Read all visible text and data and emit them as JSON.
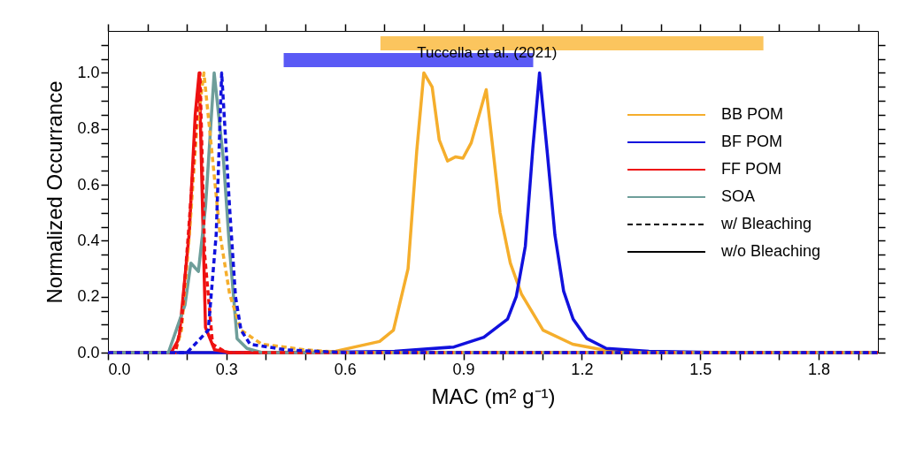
{
  "chart_data": {
    "type": "line",
    "xlabel": "MAC (m² g⁻¹)",
    "ylabel": "Normalized Occurrance",
    "xlim": [
      0,
      1.95
    ],
    "ylim": [
      0,
      1.15
    ],
    "xticks": [
      {
        "value": 0,
        "label": "0.0"
      },
      {
        "value": 0.1,
        "label": null
      },
      {
        "value": 0.2,
        "label": null
      },
      {
        "value": 0.3,
        "label": "0.3"
      },
      {
        "value": 0.4,
        "label": null
      },
      {
        "value": 0.5,
        "label": null
      },
      {
        "value": 0.6,
        "label": "0.6"
      },
      {
        "value": 0.7,
        "label": null
      },
      {
        "value": 0.8,
        "label": null
      },
      {
        "value": 0.9,
        "label": "0.9"
      },
      {
        "value": 1.0,
        "label": null
      },
      {
        "value": 1.1,
        "label": null
      },
      {
        "value": 1.2,
        "label": "1.2"
      },
      {
        "value": 1.3,
        "label": null
      },
      {
        "value": 1.4,
        "label": null
      },
      {
        "value": 1.5,
        "label": "1.5"
      },
      {
        "value": 1.6,
        "label": null
      },
      {
        "value": 1.7,
        "label": null
      },
      {
        "value": 1.8,
        "label": "1.8"
      },
      {
        "value": 1.9,
        "label": null
      }
    ],
    "yticks": [
      {
        "value": 0,
        "label": "0.0"
      },
      {
        "value": 0.05,
        "label": null
      },
      {
        "value": 0.1,
        "label": null
      },
      {
        "value": 0.15,
        "label": null
      },
      {
        "value": 0.2,
        "label": "0.2"
      },
      {
        "value": 0.25,
        "label": null
      },
      {
        "value": 0.3,
        "label": null
      },
      {
        "value": 0.35,
        "label": null
      },
      {
        "value": 0.4,
        "label": "0.4"
      },
      {
        "value": 0.45,
        "label": null
      },
      {
        "value": 0.5,
        "label": null
      },
      {
        "value": 0.55,
        "label": null
      },
      {
        "value": 0.6,
        "label": "0.6"
      },
      {
        "value": 0.65,
        "label": null
      },
      {
        "value": 0.7,
        "label": null
      },
      {
        "value": 0.75,
        "label": null
      },
      {
        "value": 0.8,
        "label": "0.8"
      },
      {
        "value": 0.85,
        "label": null
      },
      {
        "value": 0.9,
        "label": null
      },
      {
        "value": 0.95,
        "label": null
      },
      {
        "value": 1.0,
        "label": "1.0"
      },
      {
        "value": 1.05,
        "label": null
      },
      {
        "value": 1.1,
        "label": null
      }
    ],
    "grid": false,
    "legend": "right",
    "series": [
      {
        "name": "BB POM",
        "color": "#f5ae2c",
        "line_style": "solid",
        "x": [
          0,
          0.4,
          0.577,
          0.688,
          0.723,
          0.76,
          0.782,
          0.8,
          0.821,
          0.839,
          0.86,
          0.88,
          0.899,
          0.92,
          0.958,
          0.993,
          1.019,
          1.047,
          1.102,
          1.177,
          1.252,
          1.37,
          1.95
        ],
        "values": [
          0,
          0,
          0.005,
          0.04,
          0.08,
          0.3,
          0.72,
          1.0,
          0.95,
          0.76,
          0.685,
          0.7,
          0.695,
          0.75,
          0.94,
          0.5,
          0.32,
          0.21,
          0.08,
          0.03,
          0.01,
          0,
          0
        ]
      },
      {
        "name": "BF POM",
        "color": "#1111dd",
        "line_style": "solid",
        "x": [
          0,
          0.5,
          0.726,
          0.876,
          0.952,
          1.012,
          1.034,
          1.057,
          1.076,
          1.093,
          1.113,
          1.132,
          1.154,
          1.178,
          1.213,
          1.262,
          1.37,
          1.56,
          1.95
        ],
        "values": [
          0,
          0,
          0.005,
          0.02,
          0.055,
          0.12,
          0.2,
          0.38,
          0.73,
          1.0,
          0.71,
          0.42,
          0.22,
          0.12,
          0.05,
          0.015,
          0.005,
          0,
          0
        ]
      },
      {
        "name": "FF POM",
        "color": "#ee1111",
        "line_style": "solid",
        "x": [
          0,
          0.16,
          0.18,
          0.206,
          0.221,
          0.231,
          0.247,
          0.27,
          0.31,
          1.95
        ],
        "values": [
          0,
          0,
          0.05,
          0.43,
          0.85,
          1.0,
          0.09,
          0.01,
          0,
          0
        ]
      },
      {
        "name": "SOA",
        "color": "#6e9e9a",
        "line_style": "solid",
        "x": [
          0,
          0.153,
          0.195,
          0.21,
          0.229,
          0.247,
          0.269,
          0.293,
          0.308,
          0.327,
          0.352,
          0.39,
          1.95
        ],
        "values": [
          0,
          0,
          0.17,
          0.32,
          0.29,
          0.52,
          1.0,
          0.68,
          0.37,
          0.05,
          0.015,
          0,
          0
        ]
      },
      {
        "color": "#f5ae2c",
        "line_style": "dashed",
        "x": [
          0,
          0.17,
          0.186,
          0.205,
          0.225,
          0.243,
          0.263,
          0.284,
          0.308,
          0.337,
          0.39,
          0.5,
          0.6,
          1.95
        ],
        "values": [
          0,
          0,
          0.08,
          0.4,
          0.8,
          1.0,
          0.72,
          0.42,
          0.21,
          0.08,
          0.03,
          0.01,
          0,
          0
        ]
      },
      {
        "color": "#ee1111",
        "line_style": "dashed",
        "x": [
          0,
          0.17,
          0.186,
          0.205,
          0.225,
          0.233,
          0.245,
          0.265,
          0.3,
          1.95
        ],
        "values": [
          0,
          0,
          0.1,
          0.45,
          0.85,
          1.0,
          0.35,
          0.03,
          0,
          0
        ]
      },
      {
        "color": "#1111dd",
        "line_style": "dashed",
        "x": [
          0,
          0.2,
          0.254,
          0.274,
          0.288,
          0.308,
          0.323,
          0.337,
          0.36,
          0.45,
          0.6,
          1.95
        ],
        "values": [
          0,
          0,
          0.08,
          0.42,
          1.0,
          0.52,
          0.2,
          0.08,
          0.03,
          0.01,
          0,
          0
        ]
      },
      {
        "name": "w/ Bleaching",
        "color": "#000000",
        "line_style": "dashed"
      },
      {
        "name": "w/o Bleaching",
        "color": "#000000",
        "line_style": "solid"
      }
    ],
    "bands": [
      {
        "axis": "x",
        "from": 0.69,
        "to": 1.66,
        "color": "#fbc55e"
      },
      {
        "axis": "x",
        "from": 0.445,
        "to": 1.077,
        "color": "#5a5af5"
      }
    ],
    "annotations": [
      {
        "text": "Tuccella et al. (2021)",
        "x": 0.96,
        "y": 1.07
      }
    ]
  }
}
